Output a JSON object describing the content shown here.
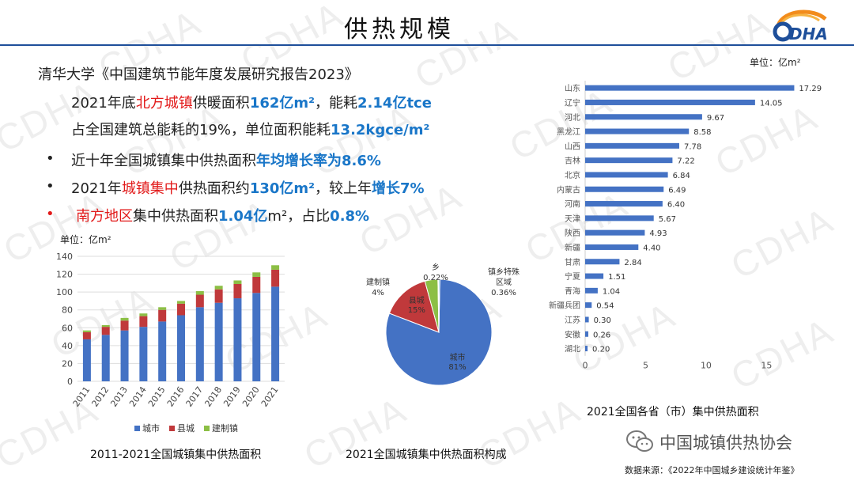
{
  "watermark": "CDHA",
  "header": {
    "title": "供热规模",
    "logo_text": "DHA"
  },
  "text": {
    "line1": "清华大学《中国建筑节能年度发展研究报告2023》",
    "l2_a": "2021年底",
    "l2_b": "北方城镇",
    "l2_c": "供暖面积",
    "l2_d": "162亿m²",
    "l2_e": "，能耗",
    "l2_f": "2.14亿tce",
    "l3_a": "占全国建筑总能耗的19%，单位面积能耗",
    "l3_b": "13.2kgce/m²",
    "b1_a": "近十年全国城镇集中供热面积",
    "b1_b": "年均增长率为8.6%",
    "b2_a": "2021年",
    "b2_b": "城镇集中",
    "b2_c": "供热面积约",
    "b2_d": "130亿m²",
    "b2_e": "，较上年",
    "b2_f": "增长7%",
    "b3_a": "南方地区",
    "b3_b": "集中供热面积",
    "b3_c": "1.04亿",
    "b3_d": "m²，占比",
    "b3_e": "0.8%"
  },
  "captions": {
    "bar_unit": "单位：亿m²",
    "bar_caption": "2011-2021全国城镇集中供热面积",
    "pie_caption": "2021全国城镇集中供热面积构成",
    "hbar_unit": "单位：亿m²",
    "hbar_caption": "2021全国各省（市）集中供热面积",
    "source": "数据来源：《2022年中国城乡建设统计年鉴》",
    "credit": "中国城镇供热协会"
  },
  "colors": {
    "blue": "#4472c4",
    "red": "#c0393b",
    "green": "#8cbf45",
    "accent": "#1976c8",
    "highlight": "#e21a1a"
  },
  "chart_data": [
    {
      "type": "bar",
      "stacked": true,
      "categories": [
        "2011",
        "2012",
        "2013",
        "2014",
        "2015",
        "2016",
        "2017",
        "2018",
        "2019",
        "2020",
        "2021"
      ],
      "series": [
        {
          "name": "城市",
          "values": [
            47,
            52,
            57,
            61,
            67,
            74,
            83,
            88,
            93,
            99,
            106
          ]
        },
        {
          "name": "县城",
          "values": [
            8,
            9,
            11,
            12,
            13,
            13,
            14,
            15,
            16,
            18,
            19
          ]
        },
        {
          "name": "建制镇",
          "values": [
            2,
            2,
            3,
            3,
            3,
            3,
            4,
            4,
            4,
            5,
            5
          ]
        }
      ],
      "ylim": [
        0,
        140
      ],
      "yticks": [
        0,
        20,
        40,
        60,
        80,
        100,
        120,
        140
      ],
      "legend": "bottom"
    },
    {
      "type": "pie",
      "slices": [
        {
          "label": "城市",
          "pct": "81%",
          "value": 81.0
        },
        {
          "label": "县城",
          "pct": "15%",
          "value": 15.0
        },
        {
          "label": "建制镇",
          "pct": "4%",
          "value": 4.0
        },
        {
          "label": "乡",
          "pct": "0.22%",
          "value": 0.22
        },
        {
          "label": "镇乡特殊区域",
          "pct": "0.36%",
          "value": 0.36
        }
      ]
    },
    {
      "type": "bar",
      "orientation": "horizontal",
      "categories": [
        "山东",
        "辽宁",
        "河北",
        "黑龙江",
        "山西",
        "吉林",
        "北京",
        "内蒙古",
        "河南",
        "天津",
        "陕西",
        "新疆",
        "甘肃",
        "宁夏",
        "青海",
        "新疆兵团",
        "江苏",
        "安徽",
        "湖北"
      ],
      "values": [
        17.29,
        14.05,
        9.67,
        8.58,
        7.78,
        7.22,
        6.84,
        6.49,
        6.4,
        5.67,
        4.93,
        4.4,
        2.84,
        1.51,
        1.04,
        0.54,
        0.3,
        0.26,
        0.2
      ],
      "labels": [
        "17.29",
        "14.05",
        "9.67",
        "8.58",
        "7.78",
        "7.22",
        "6.84",
        "6.49",
        "6.40",
        "5.67",
        "4.93",
        "4.40",
        "2.84",
        "1.51",
        "1.04",
        "0.54",
        "0.30",
        "0.26",
        "0.20"
      ],
      "xlim": [
        0,
        17
      ],
      "xticks": [
        0,
        5,
        10,
        15
      ]
    }
  ]
}
